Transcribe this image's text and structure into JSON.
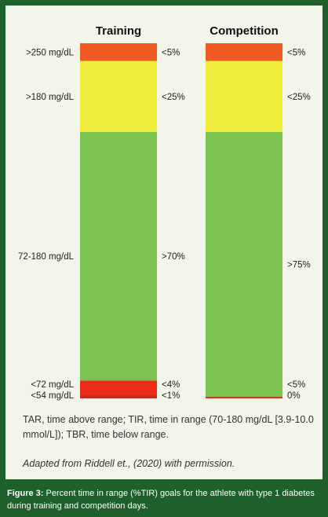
{
  "chart_data": {
    "type": "stacked-bar",
    "categories": [
      "Training",
      "Competition"
    ],
    "range_labels": [
      ">250 mg/dL",
      ">180 mg/dL",
      "72-180 mg/dL",
      "<72 mg/dL",
      "<54 mg/dL"
    ],
    "segments_bottom_to_top": [
      {
        "range": "<54 mg/dL",
        "color": "#c82a1c"
      },
      {
        "range": "<72 mg/dL",
        "color": "#ee2a18"
      },
      {
        "range": "72-180 mg/dL",
        "color": "#7cc24f"
      },
      {
        "range": ">180 mg/dL",
        "color": "#f1ee3d"
      },
      {
        "range": ">250 mg/dL",
        "color": "#f05a23"
      }
    ],
    "values": {
      "Training": [
        1,
        4,
        70,
        20,
        5
      ],
      "Competition": [
        0,
        0.5,
        74.5,
        20,
        5
      ]
    },
    "value_labels": {
      "Training": [
        "<1%",
        "<4%",
        ">70%",
        "<25%",
        "<5%"
      ],
      "Competition": [
        "0%",
        "<5%",
        ">75%",
        "<25%",
        "<5%"
      ]
    },
    "ylim": [
      0,
      100
    ]
  },
  "footnote_abbrev": "TAR, time above range; TIR, time in range (70-180 mg/dL [3.9-10.0 mmol/L]); TBR, time below range.",
  "footnote_source": "Adapted from Riddell et., (2020) with permission.",
  "caption": {
    "label": "Figure 3:",
    "text": " Percent time in range (%TIR) goals for the athlete with type 1 diabetes during training and competition days."
  },
  "colors": {
    "frame": "#1f5f2c",
    "panel": "#f2f5ea"
  }
}
